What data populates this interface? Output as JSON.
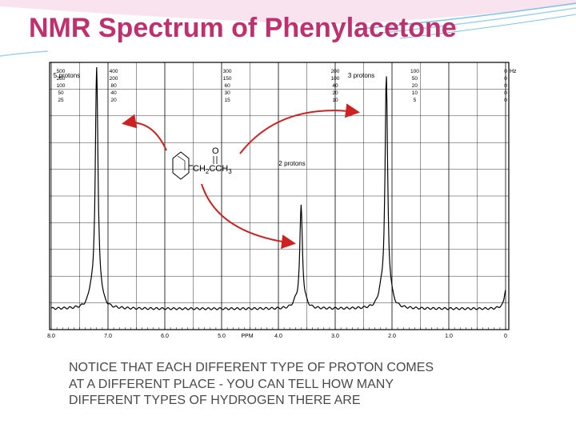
{
  "title": "NMR Spectrum of Phenylacetone",
  "caption": [
    "NOTICE THAT EACH DIFFERENT TYPE OF PROTON COMES",
    "AT A DIFFERENT PLACE -  YOU CAN TELL HOW MANY",
    "DIFFERENT TYPES OF HYDROGEN THERE ARE"
  ],
  "colors": {
    "title": "#c0306e",
    "arrows": "#cc2222",
    "grid": "#000000"
  },
  "chart_data": {
    "type": "line",
    "xlabel": "PPM",
    "x_axis": {
      "reversed": true,
      "range": [
        8.0,
        0.0
      ],
      "ticks": [
        "8.0",
        "7.0",
        "6.0",
        "5.0",
        "4.0",
        "3.0",
        "2.0",
        "1.0",
        "0"
      ]
    },
    "top_scale_label": "Hz",
    "top_scales": [
      {
        "values": [
          "500",
          "250",
          "100",
          "50",
          "25"
        ]
      },
      {
        "values": [
          "400",
          "200",
          "80",
          "40",
          "20"
        ]
      },
      {
        "values": [
          "300",
          "150",
          "60",
          "30",
          "15"
        ]
      },
      {
        "values": [
          "200",
          "100",
          "40",
          "20",
          "10"
        ]
      },
      {
        "values": [
          "100",
          "50",
          "20",
          "10",
          "5"
        ]
      },
      {
        "values": [
          "0",
          "0",
          "0",
          "0",
          "0"
        ]
      }
    ],
    "peaks": [
      {
        "ppm": 7.2,
        "label": "5 protons",
        "relative_height": 1.0
      },
      {
        "ppm": 3.6,
        "label": "2 protons",
        "relative_height": 0.42
      },
      {
        "ppm": 2.1,
        "label": "3 protons",
        "relative_height": 0.95
      },
      {
        "ppm": 0.0,
        "relative_height": 0.08
      }
    ],
    "structure": {
      "carbonyl_o": "O",
      "chain_a": "CH",
      "sub_a": "2",
      "chain_b": "CCH",
      "sub_b": "3"
    }
  }
}
